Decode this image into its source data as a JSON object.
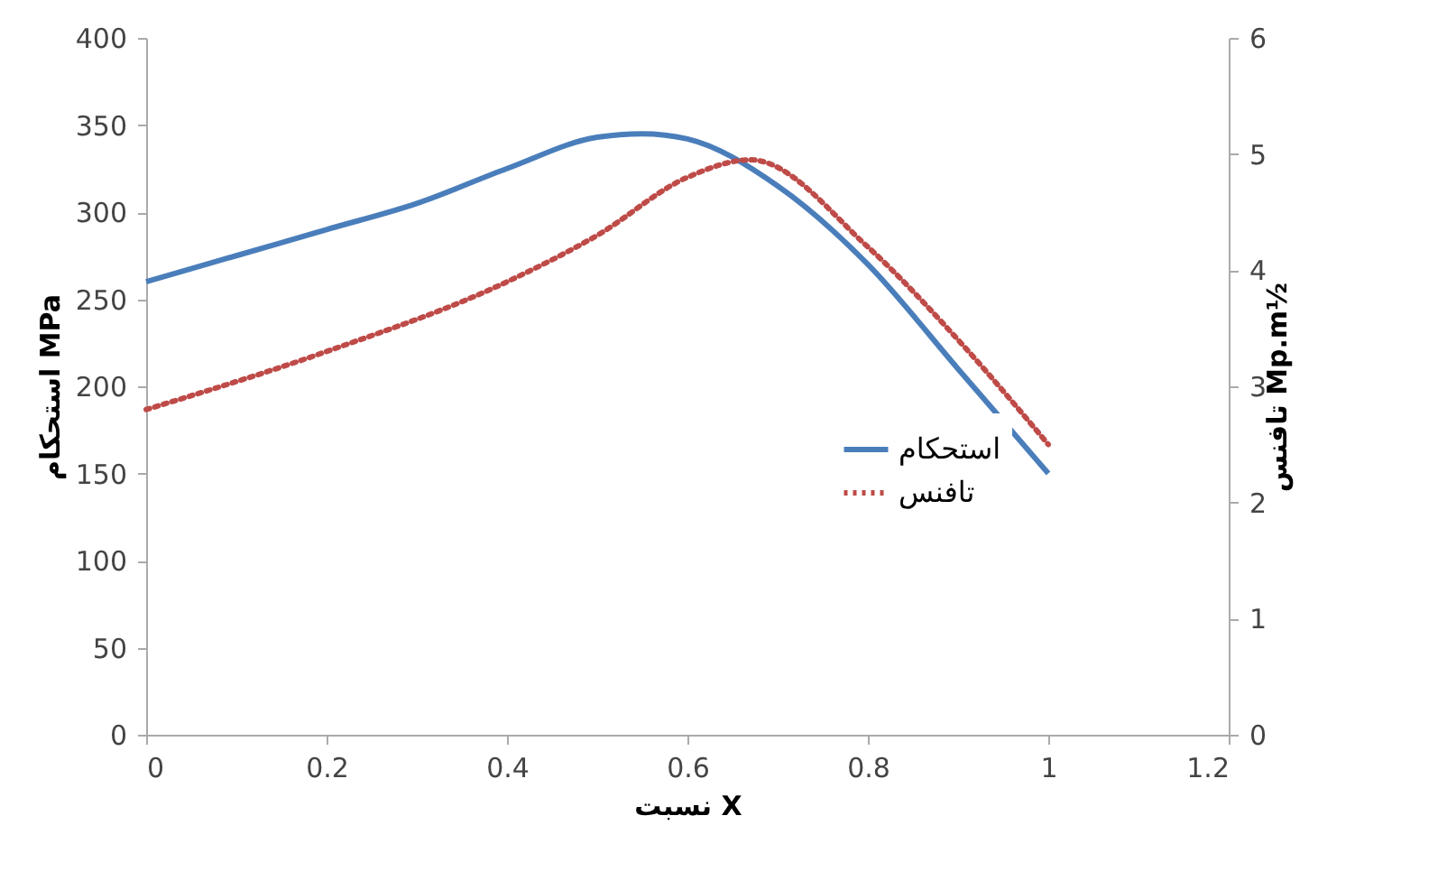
{
  "chart_data": {
    "type": "line",
    "xlabel": "نسبت X",
    "ylabel": "استحکام MPa",
    "y2label": "تافنس Mp.m½",
    "xlim": [
      0,
      1.2
    ],
    "xticks": [
      0,
      0.2,
      0.4,
      0.6,
      0.8,
      1,
      1.2
    ],
    "ylim": [
      0,
      400
    ],
    "yticks": [
      0,
      50,
      100,
      150,
      200,
      250,
      300,
      350,
      400
    ],
    "y2lim": [
      0,
      6
    ],
    "y2ticks": [
      0,
      1,
      2,
      3,
      4,
      5,
      6
    ],
    "grid": false,
    "legend": "bottom right",
    "marker": "none",
    "series": [
      {
        "name": "استحکام",
        "color": "#4a7ebb",
        "line_style": "solid",
        "x": [
          0,
          0.1,
          0.2,
          0.3,
          0.4,
          0.5,
          0.55,
          0.6,
          0.7,
          0.8,
          0.9,
          1
        ],
        "values": [
          260,
          275,
          290,
          305,
          325,
          343,
          345,
          342,
          315,
          270,
          210,
          150
        ]
      },
      {
        "name": "تافنس",
        "color": "#be4b48",
        "line_style": "dotted",
        "axis": "y2",
        "x": [
          0,
          0.2,
          0.4,
          0.5,
          0.6,
          0.67,
          0.8,
          0.9,
          1
        ],
        "values": [
          2.8,
          3.3,
          3.9,
          4.3,
          4.8,
          4.95,
          4.2,
          3.4,
          2.5
        ]
      }
    ]
  }
}
